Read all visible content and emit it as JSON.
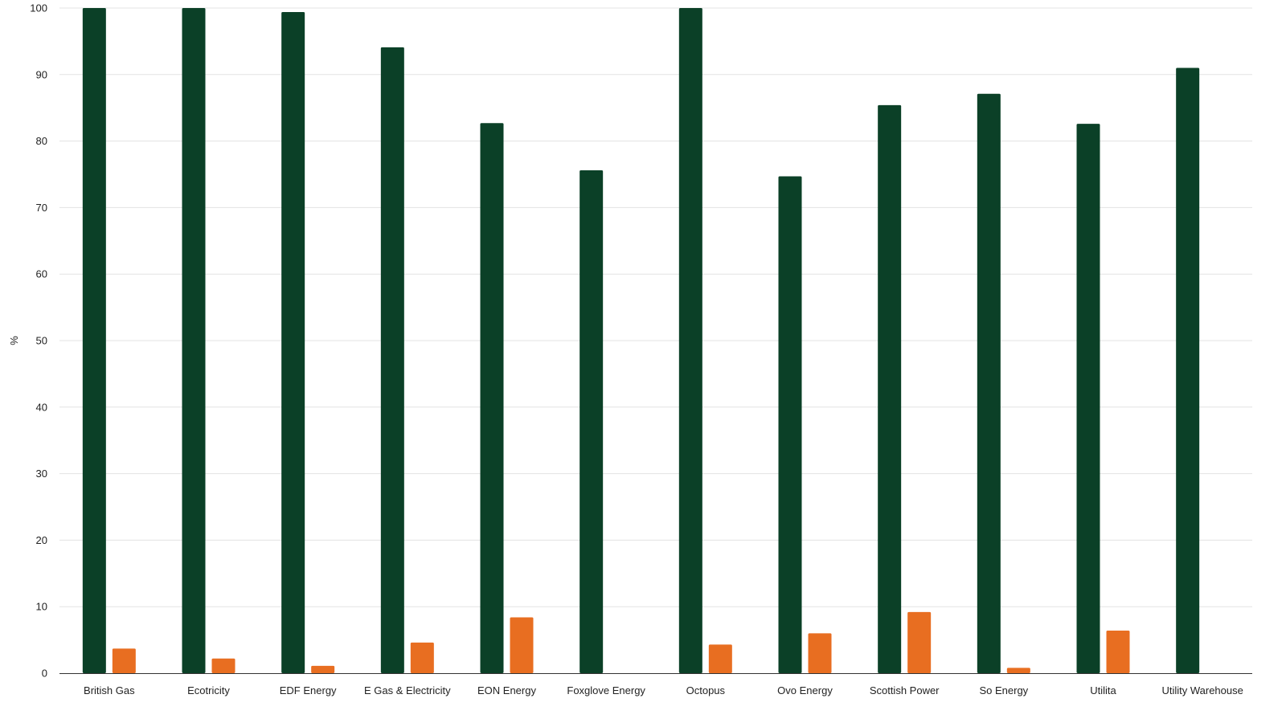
{
  "chart_data": {
    "type": "bar",
    "title": "",
    "xlabel": "",
    "ylabel": "%",
    "ylim": [
      0,
      100
    ],
    "yticks": [
      0,
      10,
      20,
      30,
      40,
      50,
      60,
      70,
      80,
      90,
      100
    ],
    "grid": true,
    "legend": "none",
    "categories": [
      "British Gas",
      "Ecotricity",
      "EDF Energy",
      "E Gas & Electricity",
      "EON Energy",
      "Foxglove Energy",
      "Octopus",
      "Ovo Energy",
      "Scottish Power",
      "So Energy",
      "Utilita",
      "Utility Warehouse"
    ],
    "series": [
      {
        "color": "#0b4027",
        "values": [
          100,
          100,
          99.4,
          94.1,
          82.7,
          75.6,
          100,
          74.7,
          85.4,
          87.1,
          82.6,
          91.0
        ]
      },
      {
        "color": "#e86e21",
        "values": [
          3.7,
          2.2,
          1.1,
          4.6,
          8.4,
          null,
          4.3,
          6.0,
          9.2,
          0.8,
          6.4,
          null
        ]
      }
    ]
  }
}
